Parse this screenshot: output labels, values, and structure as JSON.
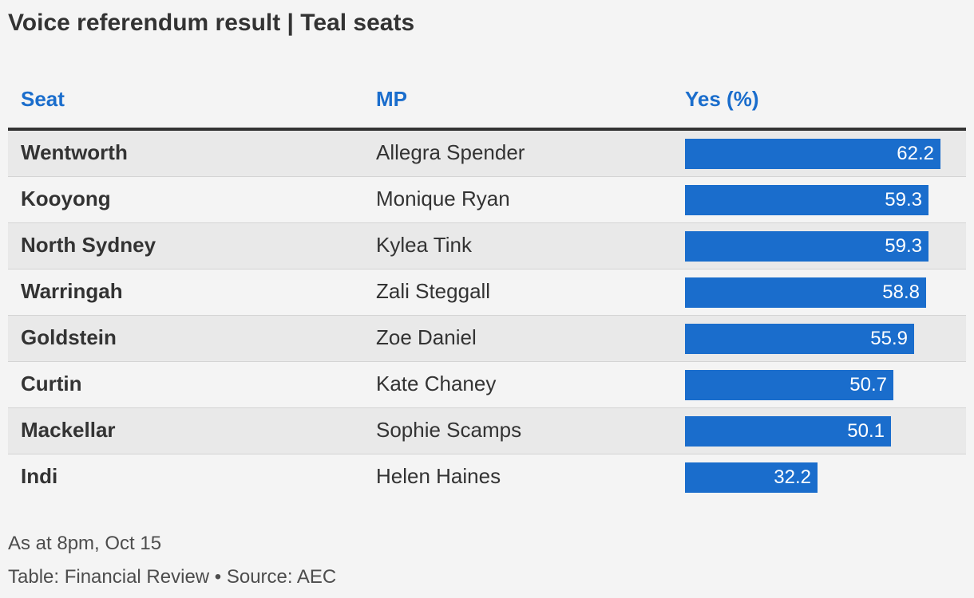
{
  "title": "Voice referendum result | Teal seats",
  "table": {
    "headers": {
      "seat": "Seat",
      "mp": "MP",
      "yes": "Yes (%)"
    }
  },
  "footnotes": {
    "as_at": "As at 8pm, Oct 15",
    "source": "Table: Financial Review • Source: AEC"
  },
  "colors": {
    "bar": "#1a6dcc",
    "header_text": "#1a6dcc",
    "text": "#333333",
    "row_alt": "#e9e9e9"
  },
  "chart_data": {
    "type": "table",
    "columns": [
      "Seat",
      "MP",
      "Yes (%)"
    ],
    "rows": [
      {
        "seat": "Wentworth",
        "mp": "Allegra Spender",
        "yes": "62.2"
      },
      {
        "seat": "Kooyong",
        "mp": "Monique Ryan",
        "yes": "59.3"
      },
      {
        "seat": "North Sydney",
        "mp": "Kylea Tink",
        "yes": "59.3"
      },
      {
        "seat": "Warringah",
        "mp": "Zali Steggall",
        "yes": "58.8"
      },
      {
        "seat": "Goldstein",
        "mp": "Zoe Daniel",
        "yes": "55.9"
      },
      {
        "seat": "Curtin",
        "mp": "Kate Chaney",
        "yes": "50.7"
      },
      {
        "seat": "Mackellar",
        "mp": "Sophie Scamps",
        "yes": "50.1"
      },
      {
        "seat": "Indi",
        "mp": "Helen Haines",
        "yes": "32.2"
      }
    ],
    "bar_scale_max": 100
  }
}
